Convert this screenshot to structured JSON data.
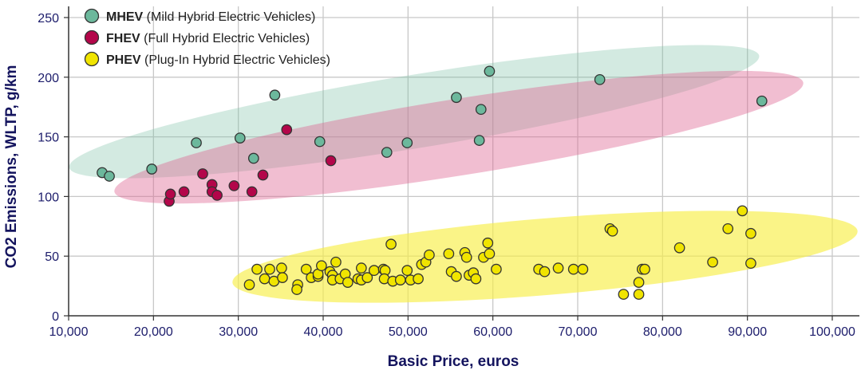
{
  "chart_data": {
    "type": "scatter",
    "xlabel": "Basic Price, euros",
    "ylabel": "CO2 Emissions, WLTP, g/km",
    "xlim": [
      10000,
      103000
    ],
    "ylim": [
      0,
      258
    ],
    "x_ticks": [
      "10,000",
      "20,000",
      "30,000",
      "40,000",
      "50,000",
      "60,000",
      "70,000",
      "80,000",
      "90,000",
      "100,000"
    ],
    "x_tick_values": [
      10000,
      20000,
      30000,
      40000,
      50000,
      60000,
      70000,
      80000,
      90000,
      100000
    ],
    "y_ticks": [
      "0",
      "50",
      "100",
      "150",
      "200",
      "250"
    ],
    "y_tick_values": [
      0,
      50,
      100,
      150,
      200,
      250
    ],
    "grid": true,
    "legend_position": "top-left",
    "series": [
      {
        "name": "MHEV",
        "description": "(Mild Hybrid Electric Vehicles)",
        "color": "#6cb89c",
        "region_color": "rgba(120,190,165,0.33)",
        "x": [
          13950,
          14800,
          19800,
          25050,
          30200,
          31800,
          34300,
          39600,
          47500,
          49900,
          55700,
          58600,
          58400,
          59600,
          72600,
          91700
        ],
        "y": [
          120,
          117,
          123,
          145,
          149,
          132,
          185,
          146,
          137,
          145,
          183,
          173,
          147,
          205,
          198,
          180
        ]
      },
      {
        "name": "FHEV",
        "description": "(Full Hybrid Electric Vehicles)",
        "color": "#b3064a",
        "region_color": "rgba(222,100,145,0.42)",
        "x": [
          21850,
          22000,
          23600,
          25800,
          26900,
          26900,
          27500,
          29500,
          31600,
          32900,
          35700,
          40900
        ],
        "y": [
          96,
          102,
          104,
          119,
          110,
          104,
          101,
          109,
          104,
          118,
          156,
          130
        ]
      },
      {
        "name": "PHEV",
        "description": "(Plug-In Hybrid Electric Vehicles)",
        "color": "#f0e400",
        "region_color": "rgba(248,238,70,0.65)",
        "x": [
          31300,
          32200,
          33100,
          33700,
          34200,
          35100,
          35200,
          37000,
          36900,
          38000,
          38600,
          39400,
          39400,
          39800,
          40800,
          41100,
          41100,
          41500,
          42000,
          42600,
          42900,
          44100,
          44500,
          44500,
          45200,
          46000,
          47100,
          47300,
          47200,
          48000,
          48200,
          49100,
          49900,
          50300,
          51200,
          51600,
          52100,
          52500,
          54800,
          55100,
          55700,
          56700,
          56900,
          57200,
          57700,
          58000,
          58900,
          59600,
          59400,
          60400,
          65400,
          66100,
          67700,
          69500,
          70600,
          73800,
          74100,
          75400,
          77200,
          77200,
          77600,
          77900,
          82000,
          85900,
          87700,
          89400,
          90400,
          90400
        ],
        "y": [
          26,
          39,
          31,
          39,
          29,
          40,
          32,
          26,
          22,
          39,
          32,
          33,
          35,
          42,
          37,
          34,
          30,
          45,
          31,
          35,
          28,
          31,
          40,
          30,
          32,
          38,
          39,
          38,
          31,
          60,
          29,
          30,
          38,
          30,
          31,
          43,
          45,
          51,
          52,
          37,
          33,
          53,
          49,
          34,
          36,
          31,
          49,
          52,
          61,
          39,
          39,
          37,
          40,
          39,
          39,
          73,
          71,
          18,
          18,
          28,
          39,
          39,
          57,
          45,
          73,
          88,
          69,
          44
        ]
      }
    ]
  }
}
